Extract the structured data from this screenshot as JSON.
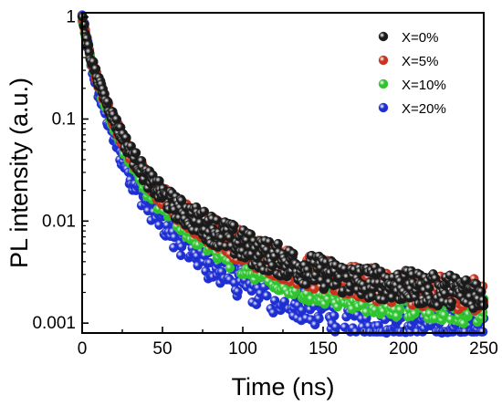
{
  "chart_data": {
    "type": "scatter",
    "title": "",
    "xlabel": "Time (ns)",
    "ylabel": "PL intensity (a.u.)",
    "xlim": [
      0,
      250
    ],
    "ylim": [
      0.0008,
      1.1
    ],
    "yscale": "log",
    "xticks": [
      0,
      50,
      100,
      150,
      200,
      250
    ],
    "xtick_labels": [
      "0",
      "50",
      "100",
      "150",
      "200",
      "250"
    ],
    "yticks": [
      0.001,
      0.01,
      0.1,
      1
    ],
    "ytick_labels": [
      "0.001",
      "0.01",
      "0.1",
      "1"
    ],
    "legend_position": "top-right",
    "grid": false,
    "series": [
      {
        "name": "X=0%",
        "color": "#1a1a1a",
        "x": [
          0,
          5,
          10,
          15,
          20,
          25,
          30,
          40,
          50,
          60,
          70,
          80,
          90,
          100,
          110,
          120,
          130,
          140,
          150,
          160,
          170,
          180,
          190,
          200,
          210,
          220,
          230,
          240,
          250
        ],
        "y": [
          1.0,
          0.42,
          0.24,
          0.15,
          0.098,
          0.068,
          0.048,
          0.027,
          0.018,
          0.013,
          0.0105,
          0.0085,
          0.007,
          0.0058,
          0.0049,
          0.0043,
          0.0038,
          0.0034,
          0.0031,
          0.0028,
          0.0026,
          0.0025,
          0.0024,
          0.0023,
          0.0022,
          0.0021,
          0.0021,
          0.002,
          0.002
        ]
      },
      {
        "name": "X=5%",
        "color": "#c8321e",
        "x": [
          0,
          5,
          10,
          15,
          20,
          25,
          30,
          40,
          50,
          60,
          70,
          80,
          90,
          100,
          110,
          120,
          130,
          140,
          150,
          160,
          170,
          180,
          190,
          200,
          210,
          220,
          230,
          240,
          250
        ],
        "y": [
          1.0,
          0.41,
          0.23,
          0.145,
          0.094,
          0.065,
          0.046,
          0.026,
          0.0175,
          0.0125,
          0.01,
          0.0082,
          0.0067,
          0.0056,
          0.0047,
          0.0041,
          0.0036,
          0.0032,
          0.0029,
          0.0027,
          0.0025,
          0.0024,
          0.0023,
          0.0022,
          0.0021,
          0.002,
          0.002,
          0.0019,
          0.0019
        ]
      },
      {
        "name": "X=10%",
        "color": "#2fc42f",
        "x": [
          0,
          5,
          10,
          15,
          20,
          25,
          30,
          40,
          50,
          60,
          70,
          80,
          90,
          100,
          110,
          120,
          130,
          140,
          150,
          160,
          170,
          180,
          190,
          200,
          210,
          220,
          230,
          240,
          250
        ],
        "y": [
          1.0,
          0.4,
          0.22,
          0.135,
          0.085,
          0.057,
          0.04,
          0.022,
          0.0145,
          0.0103,
          0.0079,
          0.0063,
          0.0051,
          0.0043,
          0.0036,
          0.0031,
          0.0027,
          0.0024,
          0.0022,
          0.002,
          0.0019,
          0.0018,
          0.0017,
          0.0016,
          0.0016,
          0.0015,
          0.0015,
          0.0014,
          0.0014
        ]
      },
      {
        "name": "X=20%",
        "color": "#1e2fd2",
        "x": [
          0,
          5,
          10,
          15,
          20,
          25,
          30,
          40,
          50,
          60,
          70,
          80,
          90,
          100,
          110,
          120,
          130,
          140,
          150,
          160,
          170,
          180,
          190,
          200,
          210,
          220,
          230,
          240,
          250
        ],
        "y": [
          1.0,
          0.38,
          0.19,
          0.11,
          0.066,
          0.042,
          0.029,
          0.016,
          0.0105,
          0.0073,
          0.0055,
          0.0043,
          0.0035,
          0.0029,
          0.0025,
          0.0021,
          0.0019,
          0.0017,
          0.0015,
          0.0014,
          0.0013,
          0.0012,
          0.0012,
          0.0011,
          0.0011,
          0.00105,
          0.001,
          0.001,
          0.001
        ]
      }
    ]
  }
}
